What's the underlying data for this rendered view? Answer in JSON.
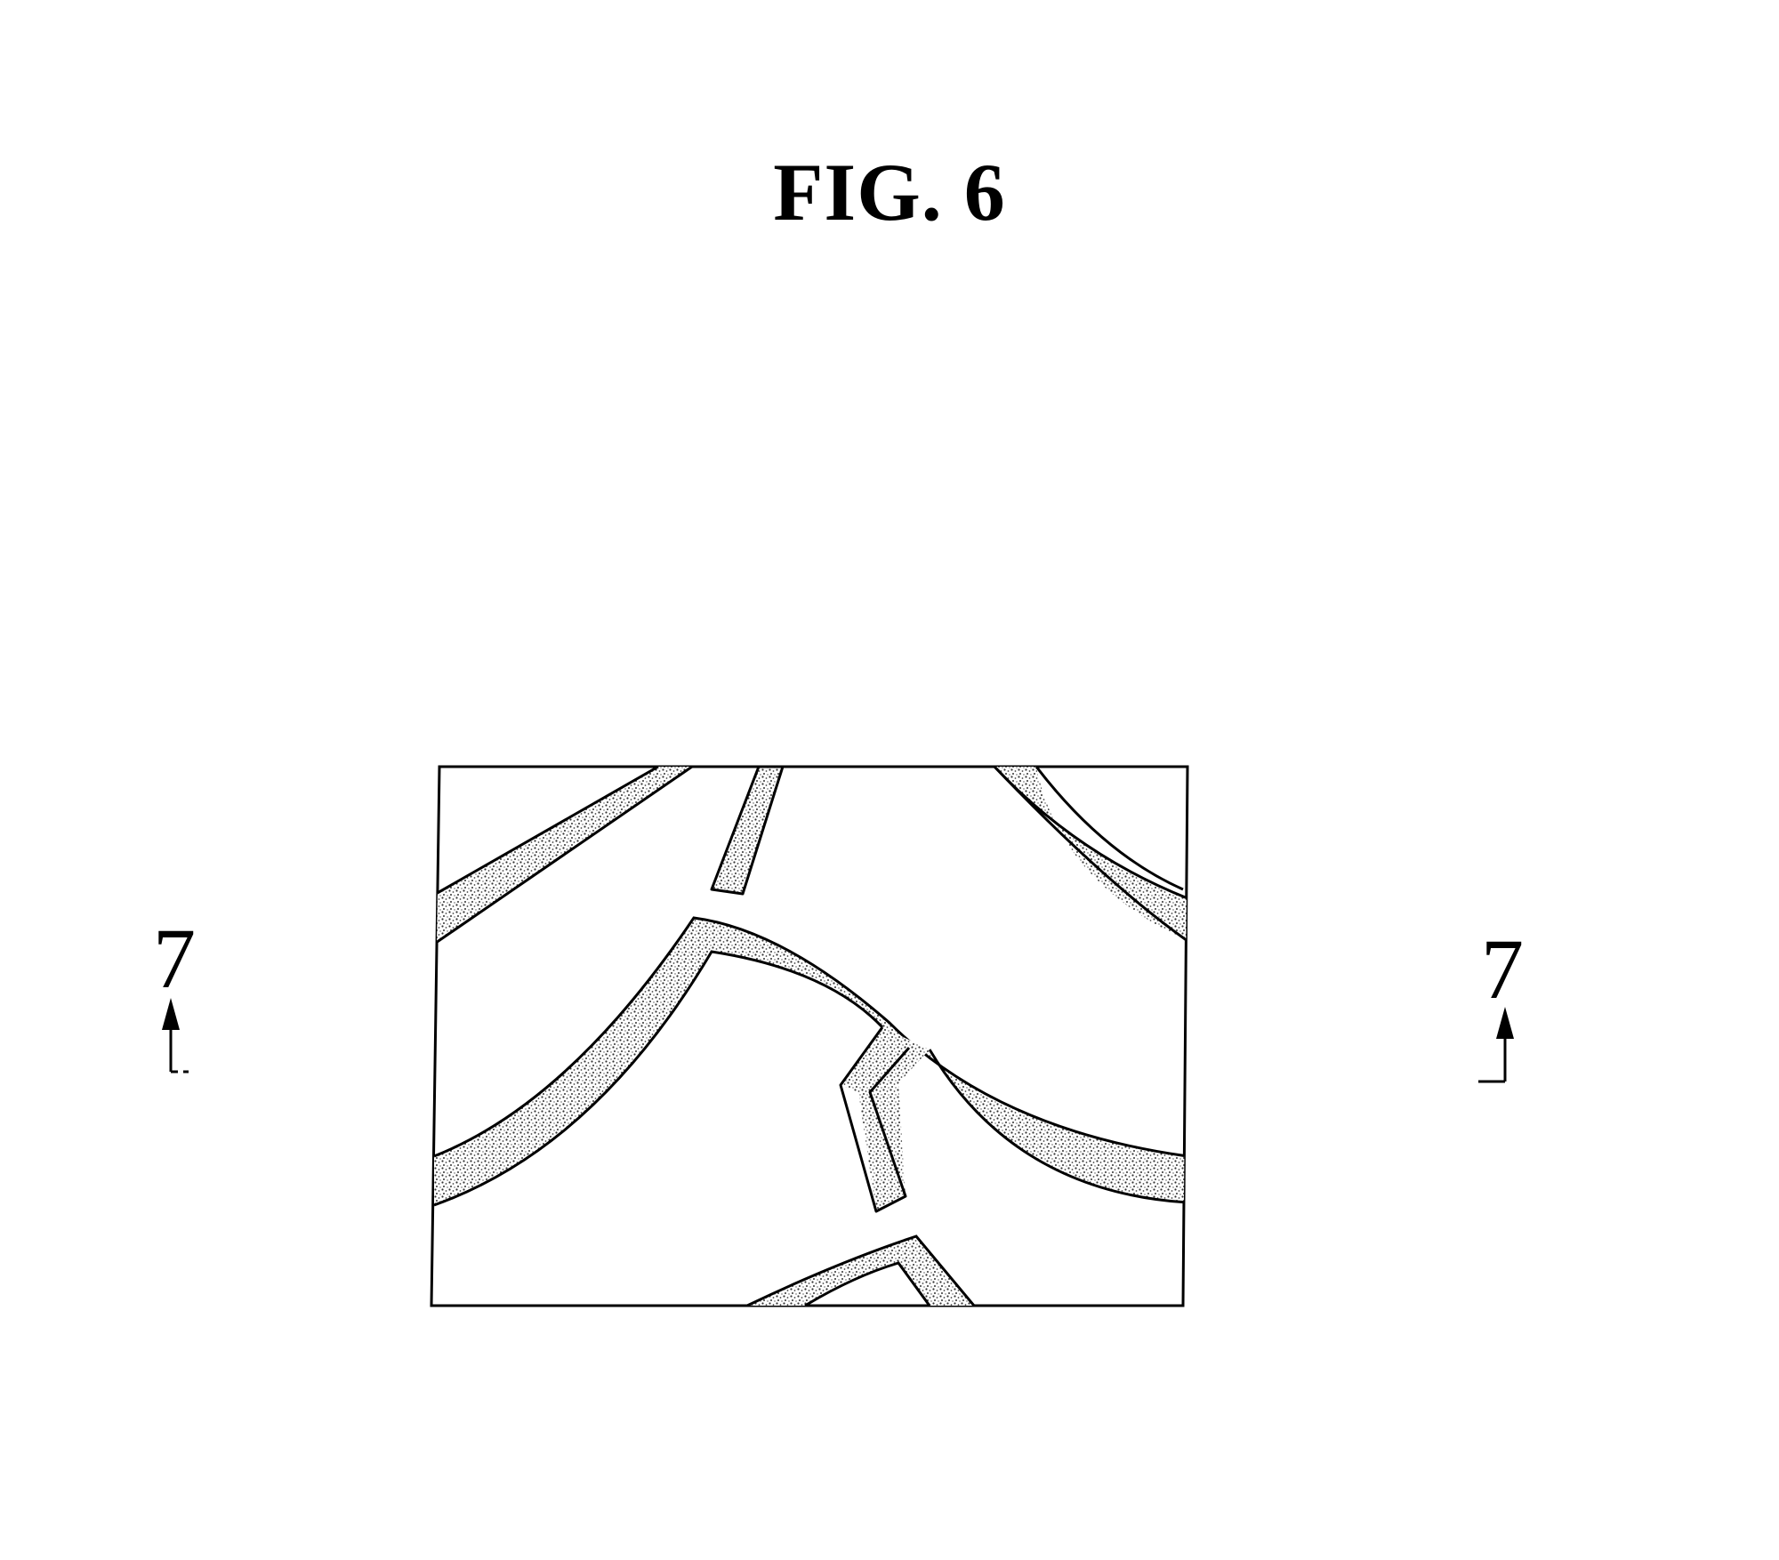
{
  "figure": {
    "title": "FIG. 6"
  },
  "section_markers": {
    "left_label": "7",
    "right_label": "7"
  },
  "colors": {
    "ink": "#000000",
    "background": "#ffffff",
    "stipple": "#555555"
  }
}
